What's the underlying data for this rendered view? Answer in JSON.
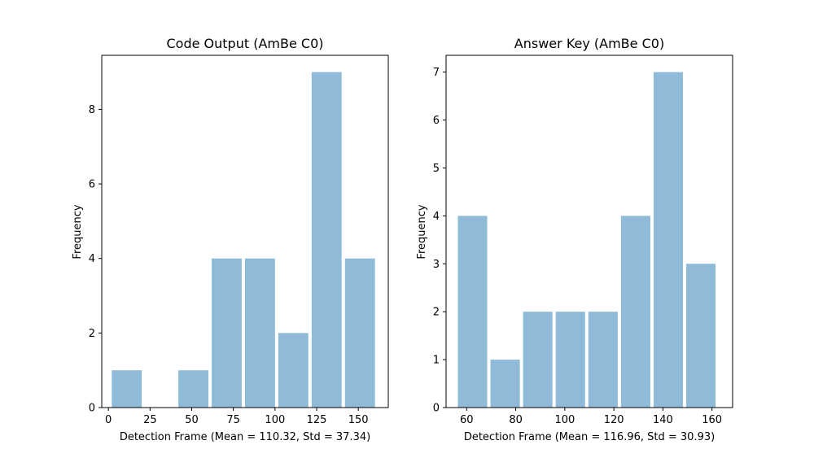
{
  "chart_data": [
    {
      "type": "bar",
      "title": "Code Output (AmBe C0)",
      "xlabel": "Detection Frame (Mean = 110.32, Std = 37.34)",
      "ylabel": "Frequency",
      "xlim": [
        -4,
        168
      ],
      "ylim": [
        0,
        9.45
      ],
      "xticks": [
        0,
        25,
        50,
        75,
        100,
        125,
        150
      ],
      "yticks": [
        0,
        2,
        4,
        6,
        8
      ],
      "bins": [
        {
          "x0": 2,
          "x1": 22,
          "count": 1
        },
        {
          "x0": 22,
          "x1": 42,
          "count": 0
        },
        {
          "x0": 42,
          "x1": 62,
          "count": 1
        },
        {
          "x0": 62,
          "x1": 82,
          "count": 4
        },
        {
          "x0": 82,
          "x1": 102,
          "count": 4
        },
        {
          "x0": 102,
          "x1": 122,
          "count": 2
        },
        {
          "x0": 122,
          "x1": 142,
          "count": 9
        },
        {
          "x0": 142,
          "x1": 162,
          "count": 4
        }
      ],
      "bar_fill": 0.9,
      "color": "#1f77b4",
      "grid": false
    },
    {
      "type": "bar",
      "title": "Answer Key (AmBe C0)",
      "xlabel": "Detection Frame (Mean = 116.96, Std = 30.93)",
      "ylabel": "Frequency",
      "xlim": [
        51.6,
        168.4
      ],
      "ylim": [
        0,
        7.35
      ],
      "xticks": [
        60,
        80,
        100,
        120,
        140,
        160
      ],
      "yticks": [
        0,
        1,
        2,
        3,
        4,
        5,
        6,
        7
      ],
      "bins": [
        {
          "x0": 56.4,
          "x1": 69.7,
          "count": 4
        },
        {
          "x0": 69.7,
          "x1": 83.0,
          "count": 1
        },
        {
          "x0": 83.0,
          "x1": 96.3,
          "count": 2
        },
        {
          "x0": 96.3,
          "x1": 109.6,
          "count": 2
        },
        {
          "x0": 109.6,
          "x1": 122.9,
          "count": 2
        },
        {
          "x0": 122.9,
          "x1": 136.2,
          "count": 4
        },
        {
          "x0": 136.2,
          "x1": 149.5,
          "count": 7
        },
        {
          "x0": 149.5,
          "x1": 162.8,
          "count": 3
        }
      ],
      "bar_fill": 0.9,
      "color": "#1f77b4",
      "grid": false
    }
  ]
}
